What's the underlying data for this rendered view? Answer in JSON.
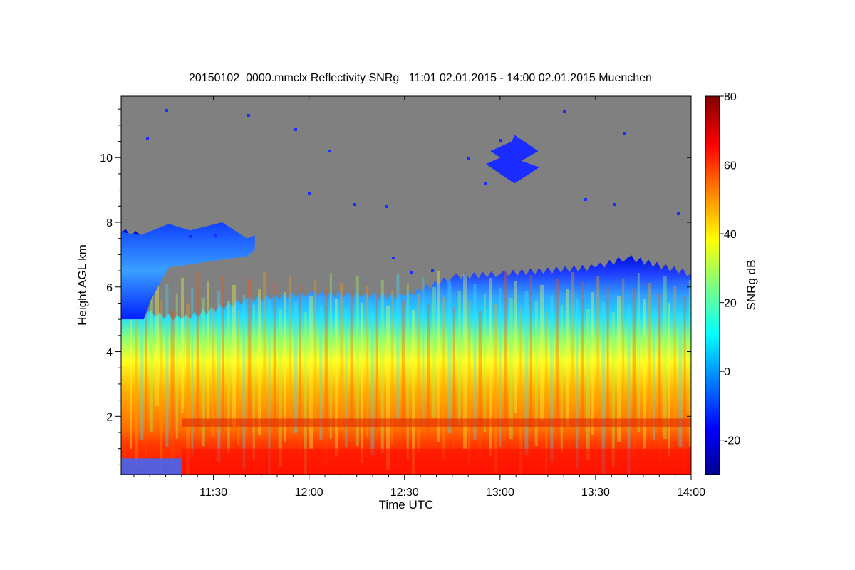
{
  "chart_data": {
    "type": "heatmap",
    "title": "20150102_0000.mmclx Reflectivity SNRg   11:01 02.01.2015 - 14:00 02.01.2015 Muenchen",
    "xlabel": "Time UTC",
    "ylabel": "Height AGL km",
    "colorbar_label": "SNRg dB",
    "x_range": [
      "11:01",
      "14:00"
    ],
    "x_ticks": [
      "11:30",
      "12:00",
      "12:30",
      "13:00",
      "13:30",
      "14:00"
    ],
    "ylim": [
      0.2,
      11.9
    ],
    "y_ticks": [
      2,
      4,
      6,
      8,
      10
    ],
    "colorbar_range": [
      -30,
      80
    ],
    "colorbar_ticks": [
      -20,
      0,
      20,
      40,
      60,
      80
    ],
    "colormap": "jet",
    "missing_color": "#808080",
    "features": {
      "echo_top_km": [
        {
          "time": "11:01",
          "height": 7.7
        },
        {
          "time": "11:07",
          "height": 7.6
        },
        {
          "time": "11:09",
          "height": 5.2
        },
        {
          "time": "11:20",
          "height": 5.0
        },
        {
          "time": "11:40",
          "height": 5.6
        },
        {
          "time": "12:00",
          "height": 5.8
        },
        {
          "time": "12:30",
          "height": 5.7
        },
        {
          "time": "12:45",
          "height": 6.3
        },
        {
          "time": "13:00",
          "height": 6.4
        },
        {
          "time": "13:30",
          "height": 6.6
        },
        {
          "time": "13:40",
          "height": 6.9
        },
        {
          "time": "14:00",
          "height": 6.4
        }
      ],
      "upper_cloud_km": {
        "start": "11:07",
        "end": "11:43",
        "base": 6.8,
        "top": 8.0
      },
      "cirrus_patch_km": {
        "start": "12:57",
        "end": "13:12",
        "base": 9.2,
        "top": 10.7
      },
      "bright_band_height_km": 1.8,
      "lower_rain_start": "11:20"
    }
  }
}
